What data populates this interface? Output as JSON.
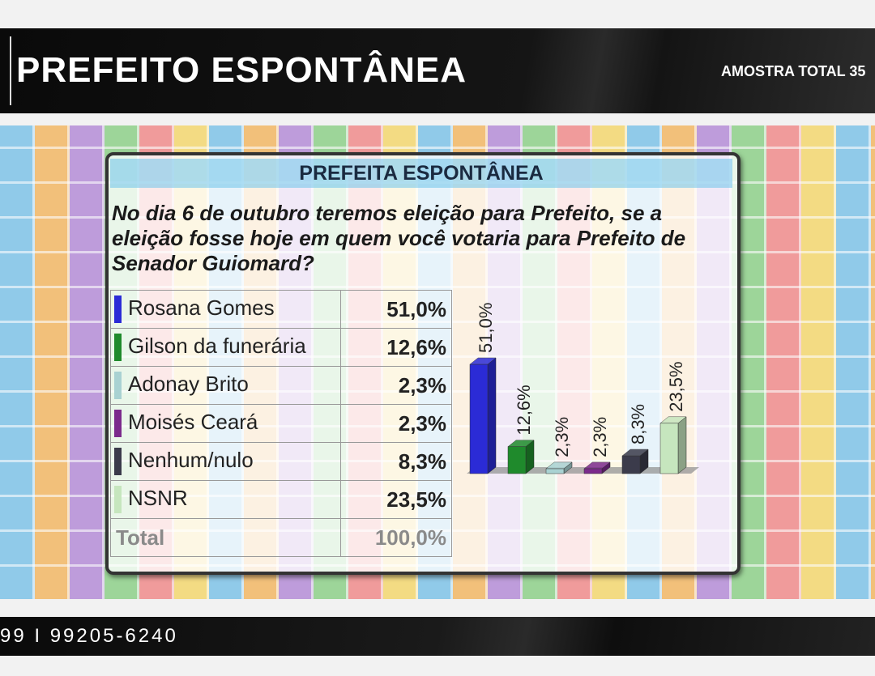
{
  "header": {
    "title": "PREFEITO ESPONTÂNEA",
    "sample": "AMOSTRA TOTAL 35"
  },
  "chart_data": {
    "type": "bar",
    "title": "PREFEITA ESPONTÂNEA",
    "subtitle": "No dia 6 de outubro teremos eleição para Prefeito, se a eleição fosse hoje em quem você votaria para Prefeito de Senador Guiomard?",
    "categories": [
      "Rosana Gomes",
      "Gilson da funerária",
      "Adonay Brito",
      "Moisés Ceará",
      "Nenhum/nulo",
      "NSNR"
    ],
    "values": [
      51.0,
      12.6,
      2.3,
      2.3,
      8.3,
      23.5
    ],
    "value_labels": [
      "51,0%",
      "12,6%",
      "2,3%",
      "2,3%",
      "8,3%",
      "23,5%"
    ],
    "colors": [
      "#2b2bd6",
      "#1f8a2c",
      "#a9d2d2",
      "#7b2a8c",
      "#3b3b4b",
      "#c6e6be"
    ]
  },
  "total_row": [
    "Total",
    "100,0%"
  ],
  "footer": {
    "contact": "99 I 99205-6240"
  }
}
